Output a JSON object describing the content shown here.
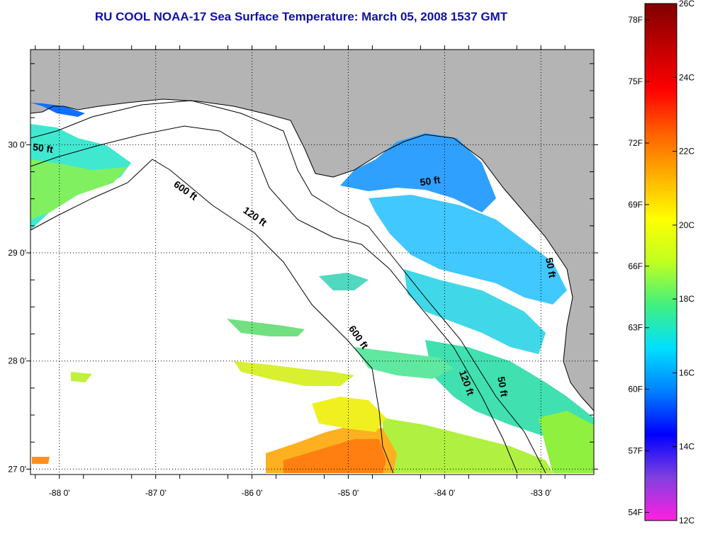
{
  "title": "RU COOL  NOAA-17  Sea Surface Temperature:  March 05, 2008 1537 GMT",
  "map": {
    "lon_range": [
      -88.3,
      -82.45
    ],
    "lat_range": [
      26.95,
      30.88
    ],
    "x_ticks": [
      {
        "value": -88,
        "label": "-88 0'"
      },
      {
        "value": -87,
        "label": "-87 0'"
      },
      {
        "value": -86,
        "label": "-86 0'"
      },
      {
        "value": -85,
        "label": "-85 0'"
      },
      {
        "value": -84,
        "label": "-84 0'"
      },
      {
        "value": -83,
        "label": "-83 0'"
      }
    ],
    "y_ticks": [
      {
        "value": 30,
        "label": "30 0'"
      },
      {
        "value": 29,
        "label": "29 0'"
      },
      {
        "value": 28,
        "label": "28 0'"
      },
      {
        "value": 27,
        "label": "27 0'"
      }
    ],
    "grid": "dotted",
    "land_color": "#b4b4b4",
    "contour_labels": [
      {
        "text": "50 ft",
        "lon": -88.28,
        "lat": 29.95,
        "angle": 8
      },
      {
        "text": "600 ft",
        "lon": -86.82,
        "lat": 29.62,
        "angle": 35
      },
      {
        "text": "120 ft",
        "lon": -86.1,
        "lat": 29.38,
        "angle": 35
      },
      {
        "text": "50 ft",
        "lon": -84.25,
        "lat": 29.62,
        "angle": -8
      },
      {
        "text": "600 ft",
        "lon": -85.0,
        "lat": 28.3,
        "angle": 55
      },
      {
        "text": "120 ft",
        "lon": -83.85,
        "lat": 27.9,
        "angle": 70
      },
      {
        "text": "50 ft",
        "lon": -83.45,
        "lat": 27.85,
        "angle": 80
      },
      {
        "text": "50 ft",
        "lon": -82.95,
        "lat": 28.95,
        "angle": 80
      }
    ]
  },
  "colorbar": {
    "range_c": [
      12,
      26
    ],
    "celsius_labels": [
      "26C",
      "24C",
      "22C",
      "20C",
      "18C",
      "16C",
      "14C",
      "12C"
    ],
    "fahrenheit_labels": [
      "78F",
      "75F",
      "72F",
      "69F",
      "66F",
      "63F",
      "60F",
      "57F",
      "54F"
    ],
    "fahrenheit_values": [
      78,
      75,
      72,
      69,
      66,
      63,
      60,
      57,
      54
    ],
    "celsius_values": [
      26,
      24,
      22,
      20,
      18,
      16,
      14,
      12
    ],
    "colors_bottom_to_top": [
      "#ff20e0",
      "#8040e0",
      "#0000ff",
      "#0080ff",
      "#00e0ff",
      "#40f080",
      "#c0ff20",
      "#ffff00",
      "#ffb000",
      "#ff6000",
      "#ff0000",
      "#c00000",
      "#800000"
    ]
  }
}
